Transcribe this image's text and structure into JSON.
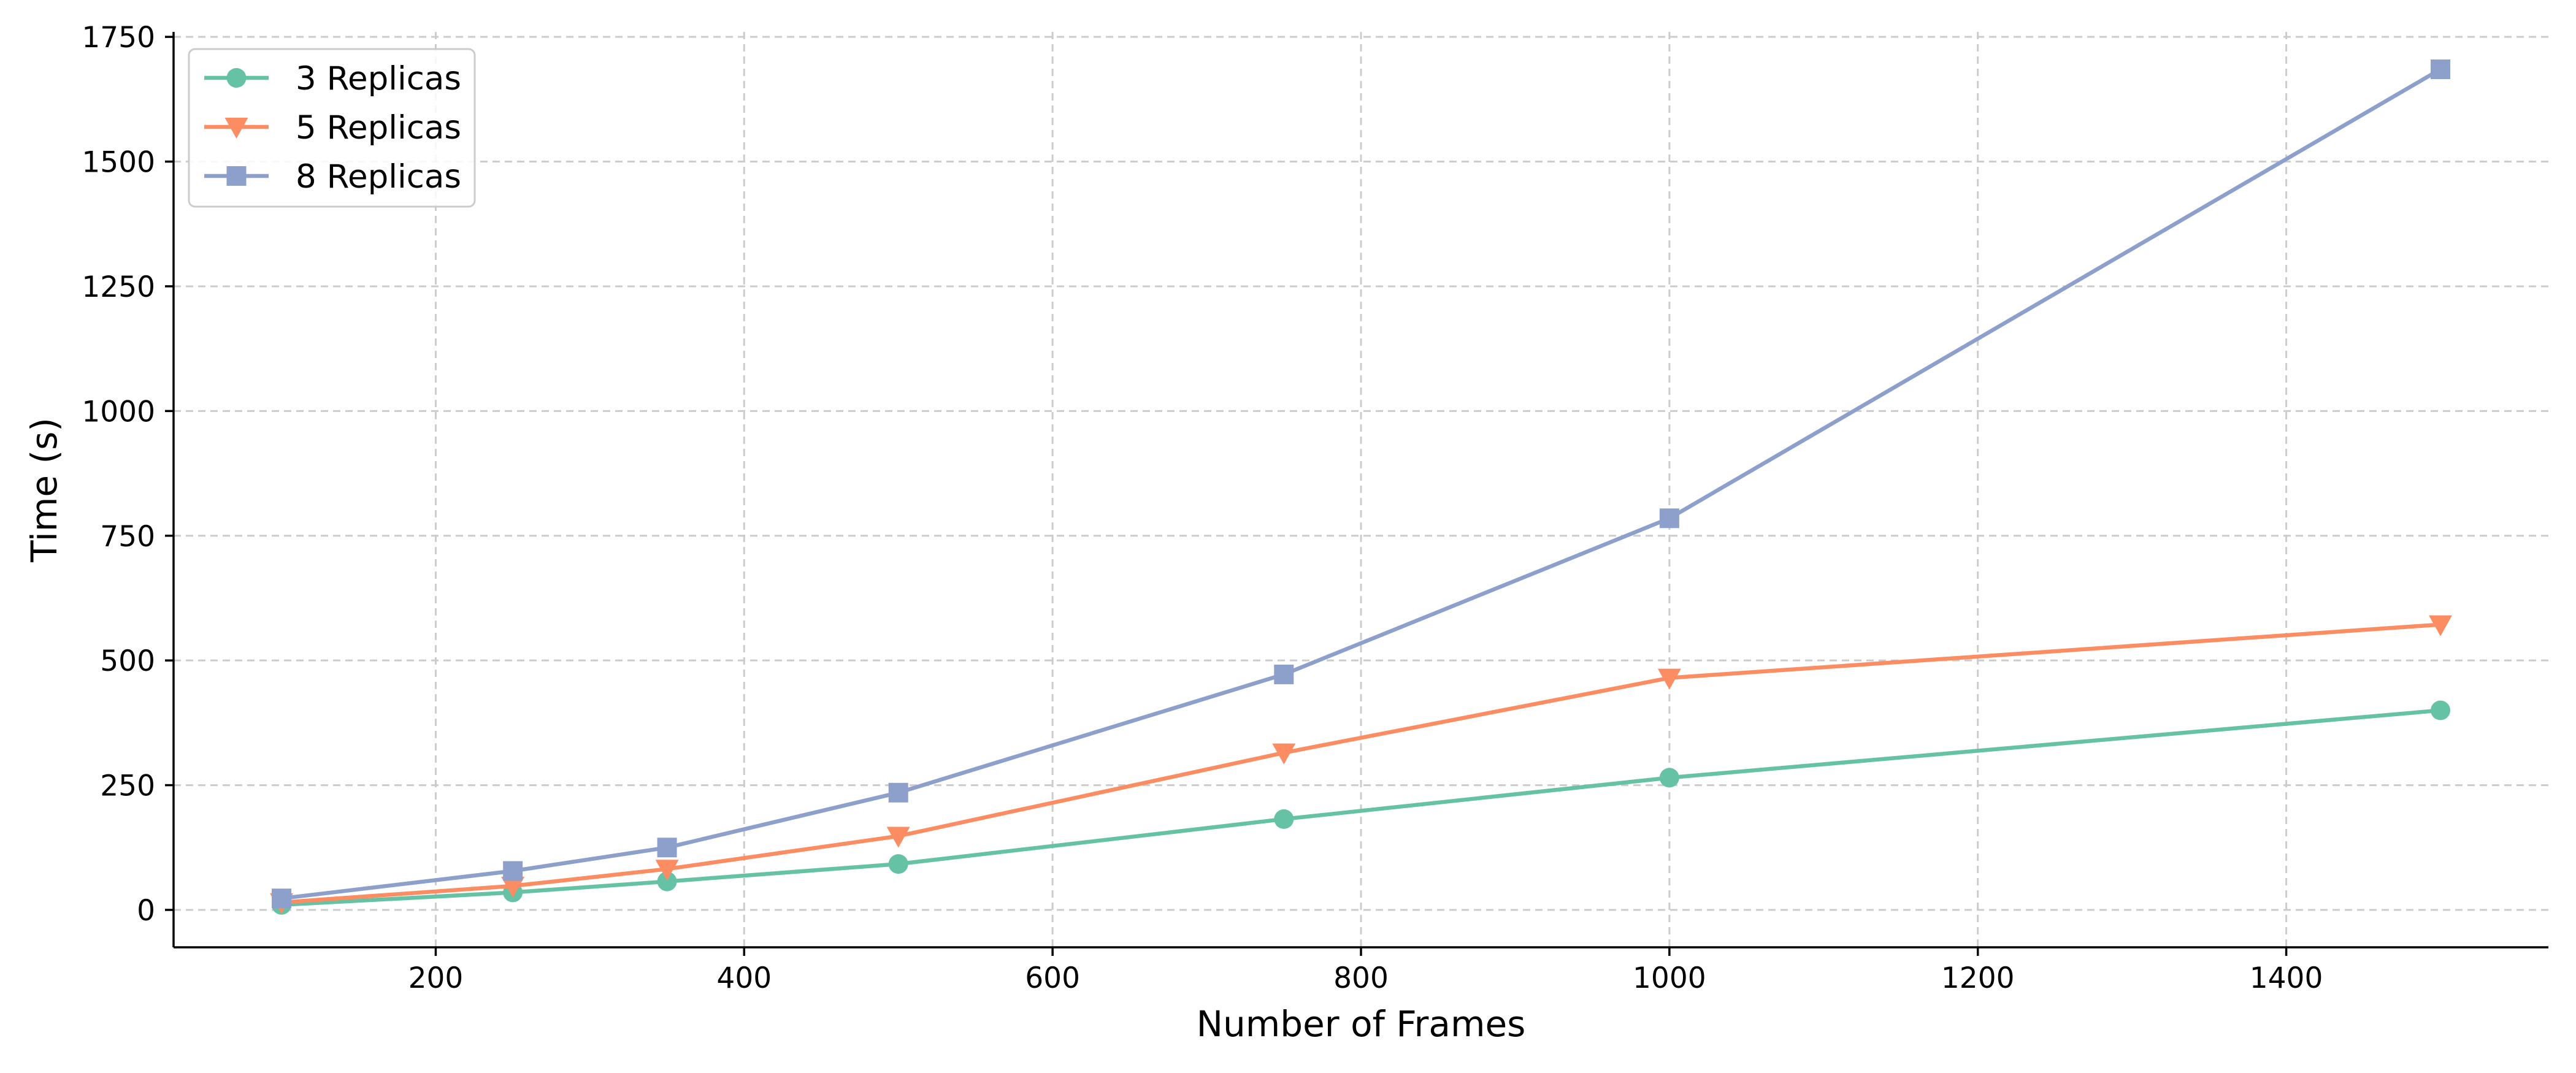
{
  "chart_data": {
    "type": "line",
    "title": "",
    "xlabel": "Number of Frames",
    "ylabel": "Time (s)",
    "xlim": [
      30,
      1570
    ],
    "ylim": [
      -75,
      1760
    ],
    "x_ticks": [
      200,
      400,
      600,
      800,
      1000,
      1200,
      1400
    ],
    "y_ticks": [
      0,
      250,
      500,
      750,
      1000,
      1250,
      1500,
      1750
    ],
    "grid": true,
    "legend_position": "top-left",
    "x": [
      100,
      250,
      350,
      500,
      750,
      1000,
      1500
    ],
    "series": [
      {
        "name": "3 Replicas",
        "color": "#66c2a5",
        "marker": "circle",
        "values": [
          10,
          35,
          57,
          92,
          182,
          265,
          400
        ]
      },
      {
        "name": "5 Replicas",
        "color": "#fc8d62",
        "marker": "triangle-down",
        "values": [
          15,
          48,
          82,
          148,
          315,
          465,
          572
        ]
      },
      {
        "name": "8 Replicas",
        "color": "#8da0cb",
        "marker": "square",
        "values": [
          23,
          78,
          125,
          235,
          472,
          785,
          1685
        ]
      }
    ]
  }
}
